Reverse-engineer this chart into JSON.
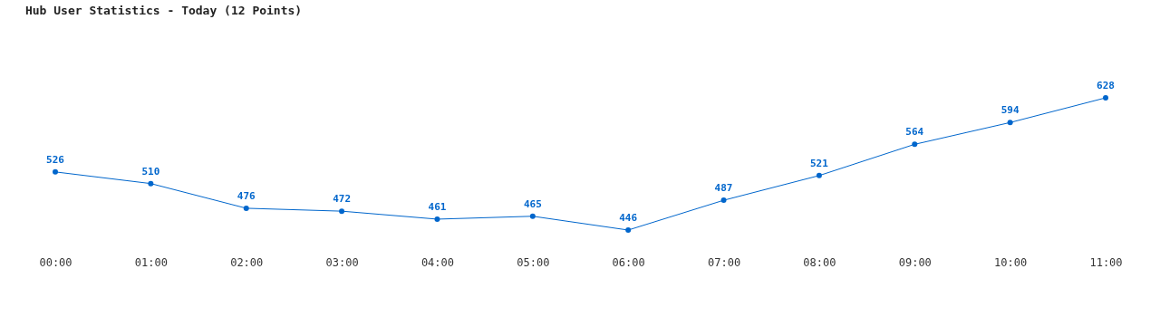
{
  "chart_data": {
    "type": "line",
    "title": "Hub User Statistics - Today (12 Points)",
    "categories": [
      "00:00",
      "01:00",
      "02:00",
      "03:00",
      "04:00",
      "05:00",
      "06:00",
      "07:00",
      "08:00",
      "09:00",
      "10:00",
      "11:00"
    ],
    "series": [
      {
        "color": "#0066cc",
        "values": [
          526,
          510,
          476,
          472,
          461,
          465,
          446,
          487,
          521,
          564,
          594,
          628
        ]
      }
    ],
    "data_labels": true,
    "marker": "circle",
    "line_style": "solid"
  }
}
